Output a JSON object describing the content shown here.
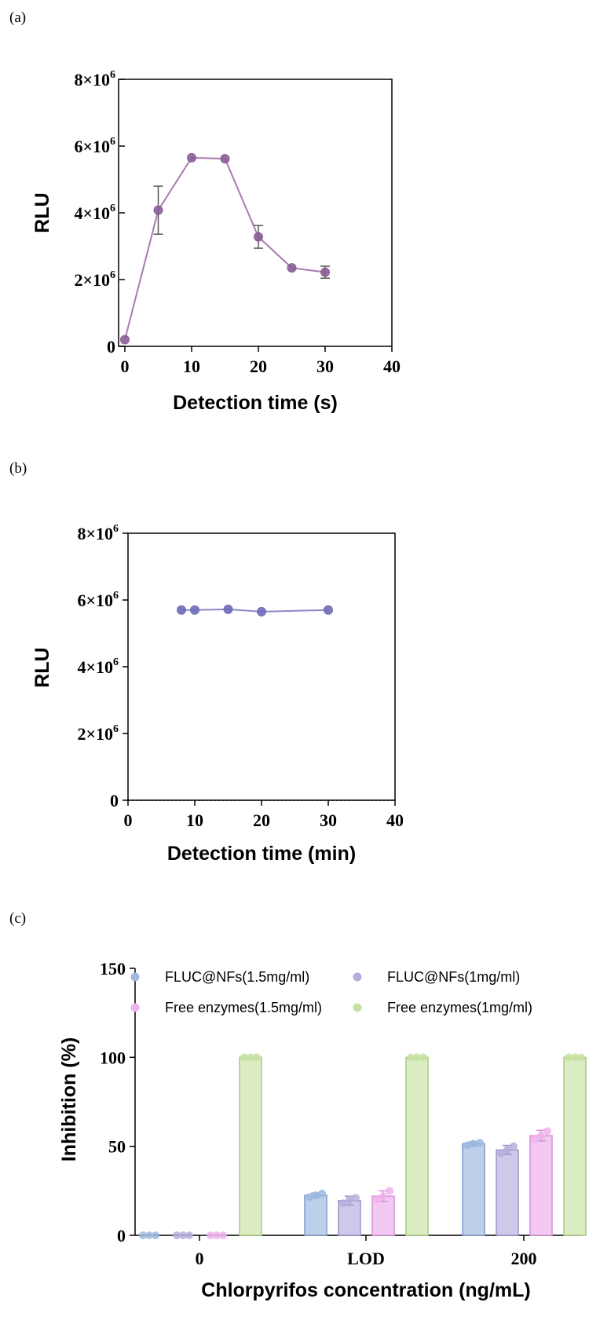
{
  "chart_data": [
    {
      "panel_label": "(a)",
      "type": "line",
      "xlabel": "Detection time (s)",
      "ylabel": "RLU",
      "xlim": [
        0,
        40
      ],
      "ylim": [
        0,
        8000000
      ],
      "x_ticks": [
        "0",
        "10",
        "20",
        "30",
        "40"
      ],
      "y_ticks": [
        {
          "base": "0",
          "exp": ""
        },
        {
          "base": "2×10",
          "exp": "6"
        },
        {
          "base": "4×10",
          "exp": "6"
        },
        {
          "base": "6×10",
          "exp": "6"
        },
        {
          "base": "8×10",
          "exp": "6"
        }
      ],
      "series": [
        {
          "x": [
            0,
            5,
            10,
            15,
            20,
            25,
            30
          ],
          "y": [
            200000,
            4080000,
            5650000,
            5620000,
            3280000,
            2350000,
            2220000
          ],
          "err": [
            0,
            720000,
            0,
            0,
            340000,
            0,
            180000
          ]
        }
      ],
      "color": "#a77bb0",
      "marker_color": "#8b5e96",
      "grid": false
    },
    {
      "panel_label": "(b)",
      "type": "line",
      "xlabel": "Detection time (min)",
      "ylabel": "RLU",
      "xlim": [
        0,
        40
      ],
      "ylim": [
        0,
        8000000
      ],
      "x_ticks": [
        "0",
        "10",
        "20",
        "30",
        "40"
      ],
      "y_ticks": [
        {
          "base": "0",
          "exp": ""
        },
        {
          "base": "2×10",
          "exp": "6"
        },
        {
          "base": "4×10",
          "exp": "6"
        },
        {
          "base": "6×10",
          "exp": "6"
        },
        {
          "base": "8×10",
          "exp": "6"
        }
      ],
      "series": [
        {
          "x": [
            8,
            10,
            15,
            20,
            30
          ],
          "y": [
            5700000,
            5700000,
            5720000,
            5650000,
            5700000
          ],
          "err": [
            0,
            0,
            0,
            0,
            0
          ]
        }
      ],
      "color": "#8a88c8",
      "marker_color": "#6f6db8",
      "grid": false
    },
    {
      "panel_label": "(c)",
      "type": "bar",
      "xlabel": "Chlorpyrifos concentration (ng/mL)",
      "ylabel": "Inhibition (%)",
      "ylim": [
        0,
        150
      ],
      "y_ticks": [
        "0",
        "50",
        "100",
        "150"
      ],
      "categories": [
        "0",
        "LOD",
        "200"
      ],
      "series": [
        {
          "name": "FLUC@NFs(1.5mg/ml)",
          "values": [
            0,
            22.5,
            51.5
          ],
          "err": [
            0,
            1.2,
            1.0
          ],
          "points": [
            [
              0,
              0,
              0
            ],
            [
              21.5,
              22.5,
              23.5
            ],
            [
              50.5,
              51.5,
              52
            ]
          ],
          "fill": "#bcd0ea",
          "stroke": "#7e9ccc",
          "dot": "#9fb9e0"
        },
        {
          "name": "FLUC@NFs(1mg/ml)",
          "values": [
            0,
            19.5,
            48
          ],
          "err": [
            0,
            2.5,
            2.5
          ],
          "points": [
            [
              0,
              0,
              0
            ],
            [
              18,
              20,
              21
            ],
            [
              46,
              48,
              50
            ]
          ],
          "fill": "#cfc8e8",
          "stroke": "#9d93cc",
          "dot": "#b7addd"
        },
        {
          "name": "Free enzymes(1.5mg/ml)",
          "values": [
            0,
            22,
            56
          ],
          "err": [
            0,
            3,
            3
          ],
          "points": [
            [
              0,
              0,
              0
            ],
            [
              20,
              22,
              25
            ],
            [
              54,
              56,
              58.5
            ]
          ],
          "fill": "#f3c8f1",
          "stroke": "#d890d8",
          "dot": "#eeb3ec"
        },
        {
          "name": "Free enzymes(1mg/ml)",
          "values": [
            100,
            100,
            100
          ],
          "err": [
            0,
            0,
            0
          ],
          "points": [
            [
              100,
              100,
              100
            ],
            [
              100,
              100,
              100
            ],
            [
              100,
              100,
              100
            ]
          ],
          "fill": "#dcecc2",
          "stroke": "#a8cc82",
          "dot": "#c6e2a2"
        }
      ],
      "legend": "top, two columns",
      "grid": false
    }
  ]
}
